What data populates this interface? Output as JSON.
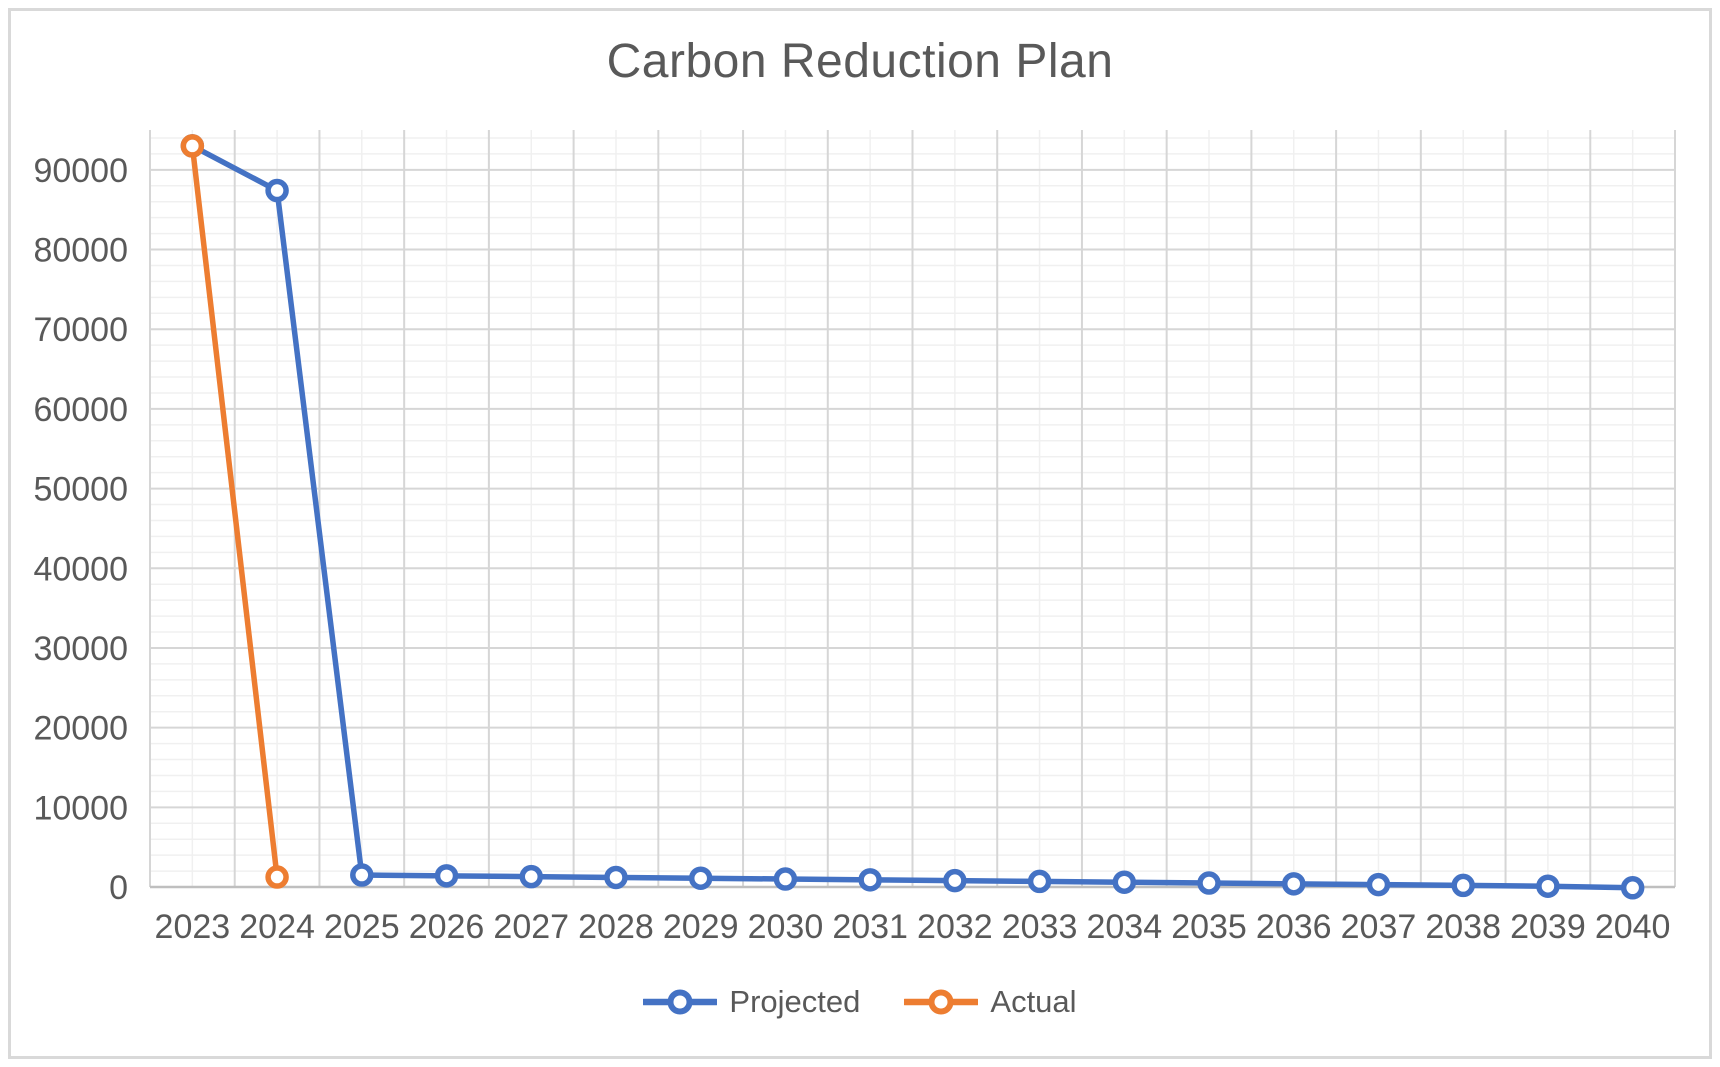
{
  "title": "Carbon Reduction Plan",
  "colors": {
    "background": "#FFFFFF",
    "chart_border": "#D9D9D9",
    "title_text": "#595959",
    "axis_text": "#595959",
    "legend_text": "#595959",
    "grid_major": "#D6D6D6",
    "grid_minor": "#F0F0F0",
    "axis_line": "#BFBFBF",
    "projected": "#4472C4",
    "actual": "#ED7D31"
  },
  "legend": [
    {
      "label": "Projected",
      "color": "#4472C4"
    },
    {
      "label": "Actual",
      "color": "#ED7D31"
    }
  ],
  "chart_data": {
    "type": "line",
    "title": "Carbon Reduction Plan",
    "categories": [
      "2023",
      "2024",
      "2025",
      "2026",
      "2027",
      "2028",
      "2029",
      "2030",
      "2031",
      "2032",
      "2033",
      "2034",
      "2035",
      "2036",
      "2037",
      "2038",
      "2039",
      "2040"
    ],
    "series": [
      {
        "name": "Projected",
        "color": "#4472C4",
        "marker": "open-circle",
        "values": [
          93000,
          87400,
          1500,
          1400,
          1300,
          1200,
          1100,
          1000,
          900,
          800,
          700,
          600,
          500,
          400,
          300,
          200,
          100,
          -100
        ]
      },
      {
        "name": "Actual",
        "color": "#ED7D31",
        "marker": "open-circle",
        "values": [
          93000,
          1250
        ]
      }
    ],
    "y_axis": {
      "min": 0,
      "max": 95000,
      "major_unit": 10000,
      "minor_unit": 2000,
      "ticks": [
        0,
        10000,
        20000,
        30000,
        40000,
        50000,
        60000,
        70000,
        80000,
        90000
      ]
    },
    "x_axis": {
      "label_rotation": 0
    },
    "grid": {
      "major": true,
      "minor": true
    },
    "legend_position": "bottom"
  }
}
